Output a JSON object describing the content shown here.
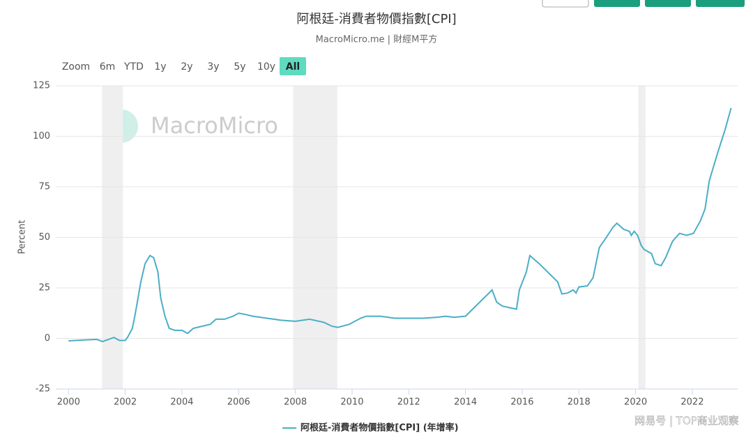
{
  "chart_data": {
    "type": "line",
    "title": "阿根廷-消費者物價指數[CPI]",
    "subtitle": "MacroMicro.me | 財經M平方",
    "range_buttons": [
      "Zoom",
      "6m",
      "YTD",
      "1y",
      "2y",
      "3y",
      "5y",
      "10y",
      "All"
    ],
    "active_range": "All",
    "watermark": "MacroMicro",
    "footer_watermark": "网易号 | TOP商业观察",
    "ylabel": "Percent",
    "xlim": [
      1999.55,
      2023.6
    ],
    "ylim": [
      -25,
      125
    ],
    "xticks": [
      2000,
      2002,
      2004,
      2006,
      2008,
      2010,
      2012,
      2014,
      2016,
      2018,
      2020,
      2022
    ],
    "yticks": [
      -25,
      0,
      25,
      50,
      75,
      100,
      125
    ],
    "grid": true,
    "shaded_ranges": [
      [
        2001.18,
        2001.92
      ],
      [
        2007.92,
        2009.48
      ],
      [
        2020.1,
        2020.35
      ]
    ],
    "x": [
      2000.0,
      2000.5,
      2001.0,
      2001.2,
      2001.6,
      2001.8,
      2002.0,
      2002.1,
      2002.25,
      2002.35,
      2002.55,
      2002.7,
      2002.87,
      2003.0,
      2003.15,
      2003.25,
      2003.4,
      2003.55,
      2003.75,
      2004.0,
      2004.2,
      2004.4,
      2004.7,
      2005.0,
      2005.2,
      2005.5,
      2005.8,
      2006.0,
      2006.2,
      2006.5,
      2007.0,
      2007.5,
      2008.0,
      2008.5,
      2009.0,
      2009.3,
      2009.5,
      2009.9,
      2010.3,
      2010.5,
      2011.0,
      2011.5,
      2012.0,
      2012.5,
      2013.0,
      2013.3,
      2013.6,
      2014.0,
      2014.94,
      2015.1,
      2015.3,
      2015.8,
      2015.9,
      2016.15,
      2016.27,
      2016.6,
      2017.25,
      2017.4,
      2017.6,
      2017.8,
      2017.9,
      2018.0,
      2018.3,
      2018.5,
      2018.72,
      2018.97,
      2019.2,
      2019.34,
      2019.58,
      2019.78,
      2019.85,
      2019.95,
      2020.07,
      2020.2,
      2020.3,
      2020.56,
      2020.69,
      2020.9,
      2021.06,
      2021.3,
      2021.55,
      2021.8,
      2022.04,
      2022.28,
      2022.45,
      2022.6,
      2022.9,
      2023.15,
      2023.37
    ],
    "series": [
      {
        "name": "阿根廷-消費者物價指數[CPI] (年增率)",
        "color": "#4aaec6",
        "values": [
          -1.2,
          -0.8,
          -0.5,
          -1.5,
          0.5,
          -1,
          -1,
          1,
          5,
          12,
          28,
          37,
          41,
          40,
          33,
          20,
          11,
          5,
          4,
          4,
          2.5,
          5,
          6,
          7,
          9.5,
          9.5,
          11,
          12.5,
          12,
          11,
          10,
          9,
          8.5,
          9.5,
          8,
          6,
          5.5,
          7,
          10,
          11,
          11,
          10,
          10,
          10,
          10.5,
          11,
          10.5,
          11,
          24,
          18,
          16,
          14.5,
          24,
          33,
          41,
          37,
          28,
          22,
          22.5,
          24,
          22.5,
          25.5,
          26,
          30,
          45,
          50,
          55,
          57,
          54,
          53,
          51,
          53,
          51,
          46,
          44,
          42,
          37,
          36,
          40,
          48,
          52,
          51,
          52,
          58,
          64,
          78,
          92,
          103,
          114
        ]
      }
    ]
  }
}
